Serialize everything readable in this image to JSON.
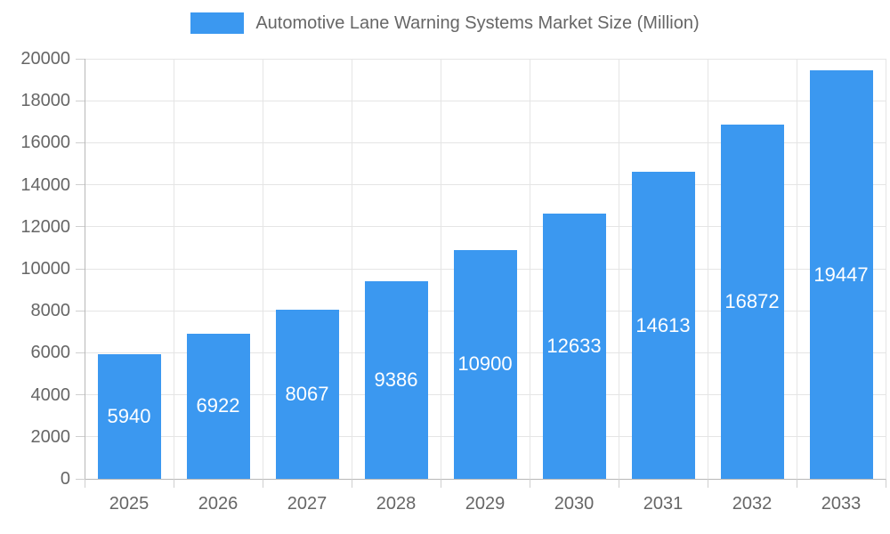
{
  "chart_data": {
    "type": "bar",
    "title": "",
    "xlabel": "",
    "ylabel": "",
    "legend_position": "top",
    "grid": true,
    "series_name": "Automotive Lane Warning Systems Market Size (Million)",
    "categories": [
      "2025",
      "2026",
      "2027",
      "2028",
      "2029",
      "2030",
      "2031",
      "2032",
      "2033"
    ],
    "values": [
      5940,
      6922,
      8067,
      9386,
      10900,
      12633,
      14613,
      16872,
      19447
    ],
    "ylim": [
      0,
      20000
    ],
    "yticks": [
      0,
      2000,
      4000,
      6000,
      8000,
      10000,
      12000,
      14000,
      16000,
      18000,
      20000
    ],
    "colors": {
      "bar": "#3b98f0",
      "value_label": "#ffffff",
      "axis_label": "#666666",
      "legend_label": "#666666",
      "gridline": "#e5e5e5",
      "axis_line": "#b8b8b8",
      "tick_mark": "#cfcfcf",
      "background": "#ffffff"
    }
  }
}
